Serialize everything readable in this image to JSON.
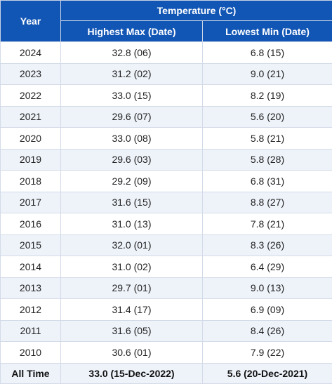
{
  "table": {
    "headers": {
      "year": "Year",
      "group": "Temperature (°C)",
      "max": "Highest Max (Date)",
      "min": "Lowest Min (Date)"
    },
    "rows": [
      {
        "year": "2024",
        "max": "32.8 (06)",
        "min": "6.8 (15)"
      },
      {
        "year": "2023",
        "max": "31.2 (02)",
        "min": "9.0 (21)"
      },
      {
        "year": "2022",
        "max": "33.0 (15)",
        "min": "8.2 (19)"
      },
      {
        "year": "2021",
        "max": "29.6 (07)",
        "min": "5.6 (20)"
      },
      {
        "year": "2020",
        "max": "33.0 (08)",
        "min": "5.8 (21)"
      },
      {
        "year": "2019",
        "max": "29.6 (03)",
        "min": "5.8 (28)"
      },
      {
        "year": "2018",
        "max": "29.2 (09)",
        "min": "6.8 (31)"
      },
      {
        "year": "2017",
        "max": "31.6 (15)",
        "min": "8.8 (27)"
      },
      {
        "year": "2016",
        "max": "31.0 (13)",
        "min": "7.8 (21)"
      },
      {
        "year": "2015",
        "max": "32.0 (01)",
        "min": "8.3 (26)"
      },
      {
        "year": "2014",
        "max": "31.0 (02)",
        "min": "6.4 (29)"
      },
      {
        "year": "2013",
        "max": "29.7 (01)",
        "min": "9.0 (13)"
      },
      {
        "year": "2012",
        "max": "31.4 (17)",
        "min": "6.9 (09)"
      },
      {
        "year": "2011",
        "max": "31.6 (05)",
        "min": "8.4 (26)"
      },
      {
        "year": "2010",
        "max": "30.6 (01)",
        "min": "7.9 (22)"
      }
    ],
    "all_time": {
      "label": "All Time",
      "max": "33.0 (15-Dec-2022)",
      "min": "5.6 (20-Dec-2021)"
    }
  },
  "colors": {
    "header_bg": "#1155b5",
    "header_text": "#ffffff",
    "stripe": "#eef3fa",
    "border": "#d3dbe8"
  }
}
